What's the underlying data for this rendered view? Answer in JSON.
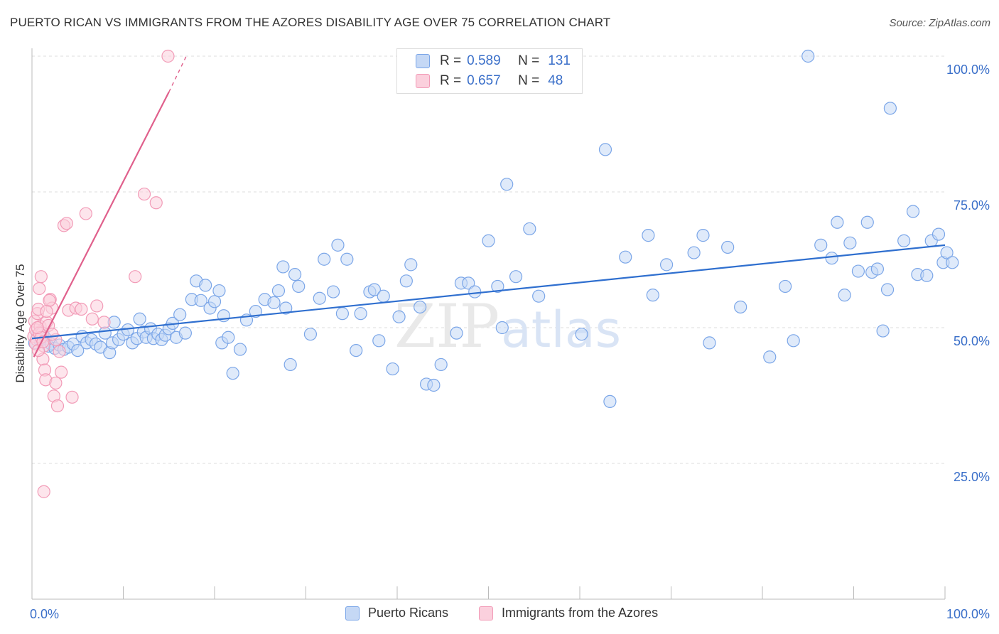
{
  "header": {
    "title": "PUERTO RICAN VS IMMIGRANTS FROM THE AZORES DISABILITY AGE OVER 75 CORRELATION CHART",
    "source": "Source: ZipAtlas.com"
  },
  "watermark": {
    "zip": "ZIP",
    "atlas": "atlas"
  },
  "legend": {
    "r_label": "R =",
    "n_label": "N =",
    "items": [
      {
        "r": "0.589",
        "n": "131",
        "color": "#7ba6e8"
      },
      {
        "r": "0.657",
        "n": "48",
        "color": "#f29bb7"
      }
    ]
  },
  "bottom_legend": [
    {
      "label": "Puerto Ricans",
      "color": "#7ba6e8"
    },
    {
      "label": "Immigrants from the Azores",
      "color": "#f29bb7"
    }
  ],
  "colors": {
    "blue_fill": "#c5d8f5",
    "blue_stroke": "#7ba6e8",
    "blue_line": "#2f6fcf",
    "pink_fill": "#fbd0dd",
    "pink_stroke": "#f29bb7",
    "pink_line": "#e0608c",
    "tick_label": "#3a6fc9",
    "grid": "#dddddd"
  },
  "chart_data": {
    "type": "scatter",
    "title": "PUERTO RICAN VS IMMIGRANTS FROM THE AZORES DISABILITY AGE OVER 75 CORRELATION CHART",
    "xlabel": "",
    "ylabel": "Disability Age Over 75",
    "xlim": [
      0,
      100
    ],
    "ylim": [
      0,
      100
    ],
    "x_tick_labels": [
      "0.0%",
      "100.0%"
    ],
    "y_ticks": [
      25,
      50,
      75,
      100
    ],
    "y_tick_labels": [
      "25.0%",
      "50.0%",
      "75.0%",
      "100.0%"
    ],
    "grid": true,
    "legend_position": "top-center",
    "series": [
      {
        "name": "Puerto Ricans",
        "r": 0.589,
        "n": 131,
        "trend": {
          "x": [
            0,
            100
          ],
          "y": [
            48.0,
            65.2
          ]
        },
        "points": [
          [
            0.3,
            47.2
          ],
          [
            0.6,
            48.6
          ],
          [
            0.9,
            47.6
          ],
          [
            1.2,
            49.0
          ],
          [
            1.5,
            48.0
          ],
          [
            1.8,
            46.6
          ],
          [
            2.1,
            47.0
          ],
          [
            2.5,
            46.2
          ],
          [
            3.0,
            46.8
          ],
          [
            3.5,
            46.0
          ],
          [
            4.0,
            46.4
          ],
          [
            4.5,
            47.0
          ],
          [
            5.0,
            45.8
          ],
          [
            5.5,
            48.4
          ],
          [
            6.0,
            47.2
          ],
          [
            6.5,
            47.8
          ],
          [
            7.0,
            47.0
          ],
          [
            7.5,
            46.4
          ],
          [
            8.0,
            49.0
          ],
          [
            8.5,
            45.4
          ],
          [
            8.8,
            47.2
          ],
          [
            9.0,
            51.0
          ],
          [
            9.5,
            47.8
          ],
          [
            10.0,
            48.8
          ],
          [
            10.5,
            49.6
          ],
          [
            11.0,
            47.2
          ],
          [
            11.5,
            48.0
          ],
          [
            11.8,
            51.6
          ],
          [
            12.2,
            49.2
          ],
          [
            12.5,
            48.2
          ],
          [
            13.0,
            49.8
          ],
          [
            13.3,
            48.0
          ],
          [
            13.8,
            48.8
          ],
          [
            14.2,
            47.8
          ],
          [
            14.6,
            48.6
          ],
          [
            15.0,
            49.8
          ],
          [
            15.4,
            50.8
          ],
          [
            15.8,
            48.2
          ],
          [
            16.2,
            52.4
          ],
          [
            16.8,
            49.0
          ],
          [
            17.5,
            55.2
          ],
          [
            18.0,
            58.6
          ],
          [
            18.5,
            55.0
          ],
          [
            19.0,
            57.8
          ],
          [
            19.5,
            53.6
          ],
          [
            20.0,
            54.8
          ],
          [
            20.5,
            56.8
          ],
          [
            20.8,
            47.2
          ],
          [
            21.0,
            52.2
          ],
          [
            21.5,
            48.2
          ],
          [
            22.0,
            41.6
          ],
          [
            22.8,
            46.0
          ],
          [
            23.5,
            51.4
          ],
          [
            24.5,
            53.0
          ],
          [
            25.5,
            55.2
          ],
          [
            26.5,
            54.6
          ],
          [
            27.0,
            56.8
          ],
          [
            27.5,
            61.2
          ],
          [
            27.8,
            53.6
          ],
          [
            28.3,
            43.2
          ],
          [
            28.8,
            59.8
          ],
          [
            29.2,
            57.6
          ],
          [
            30.5,
            48.8
          ],
          [
            31.5,
            55.4
          ],
          [
            32.0,
            62.6
          ],
          [
            33.0,
            56.6
          ],
          [
            33.5,
            65.2
          ],
          [
            34.0,
            52.6
          ],
          [
            34.5,
            62.6
          ],
          [
            35.5,
            45.8
          ],
          [
            36.0,
            52.6
          ],
          [
            37.0,
            56.6
          ],
          [
            37.5,
            57.0
          ],
          [
            38.0,
            47.6
          ],
          [
            38.5,
            55.8
          ],
          [
            39.5,
            42.4
          ],
          [
            40.2,
            52.0
          ],
          [
            41.0,
            58.6
          ],
          [
            41.5,
            61.6
          ],
          [
            42.5,
            53.8
          ],
          [
            43.2,
            39.6
          ],
          [
            44.0,
            39.4
          ],
          [
            44.8,
            43.2
          ],
          [
            46.5,
            49.0
          ],
          [
            47.0,
            58.2
          ],
          [
            47.8,
            58.2
          ],
          [
            48.5,
            56.6
          ],
          [
            50.0,
            66.0
          ],
          [
            51.0,
            57.6
          ],
          [
            51.5,
            50.0
          ],
          [
            52.0,
            76.4
          ],
          [
            53.0,
            59.4
          ],
          [
            54.5,
            68.2
          ],
          [
            55.5,
            55.8
          ],
          [
            60.2,
            48.8
          ],
          [
            62.8,
            82.8
          ],
          [
            63.3,
            36.4
          ],
          [
            65.0,
            63.0
          ],
          [
            67.5,
            67.0
          ],
          [
            68.0,
            56.0
          ],
          [
            69.5,
            61.6
          ],
          [
            72.5,
            63.8
          ],
          [
            73.5,
            67.0
          ],
          [
            74.2,
            47.2
          ],
          [
            76.2,
            64.8
          ],
          [
            77.6,
            53.8
          ],
          [
            80.8,
            44.6
          ],
          [
            82.5,
            57.6
          ],
          [
            83.4,
            47.6
          ],
          [
            85.0,
            100.0
          ],
          [
            86.4,
            65.2
          ],
          [
            87.6,
            62.8
          ],
          [
            88.2,
            69.4
          ],
          [
            89.0,
            56.0
          ],
          [
            89.6,
            65.6
          ],
          [
            90.5,
            60.4
          ],
          [
            91.5,
            69.4
          ],
          [
            92.0,
            60.2
          ],
          [
            92.6,
            60.8
          ],
          [
            93.2,
            49.4
          ],
          [
            93.7,
            57.0
          ],
          [
            94.0,
            90.4
          ],
          [
            95.5,
            66.0
          ],
          [
            96.5,
            71.4
          ],
          [
            97.0,
            59.8
          ],
          [
            98.0,
            59.6
          ],
          [
            98.5,
            66.0
          ],
          [
            99.3,
            67.2
          ],
          [
            99.8,
            62.0
          ],
          [
            100.2,
            63.8
          ],
          [
            100.8,
            62.0
          ]
        ]
      },
      {
        "name": "Immigrants from the Azores",
        "r": 0.657,
        "n": 48,
        "trend": {
          "x": [
            0.2,
            15.0
          ],
          "y": [
            44.6,
            93.4
          ]
        },
        "trend_extension": {
          "x": [
            15.0,
            16.9
          ],
          "y": [
            93.4,
            100.0
          ]
        },
        "points": [
          [
            0.2,
            48.4
          ],
          [
            0.3,
            51.2
          ],
          [
            0.4,
            49.6
          ],
          [
            0.5,
            47.8
          ],
          [
            0.6,
            52.6
          ],
          [
            0.7,
            53.4
          ],
          [
            0.8,
            57.2
          ],
          [
            0.9,
            50.2
          ],
          [
            1.0,
            59.4
          ],
          [
            1.1,
            49.0
          ],
          [
            1.2,
            44.2
          ],
          [
            1.3,
            46.6
          ],
          [
            1.4,
            42.2
          ],
          [
            1.5,
            40.4
          ],
          [
            1.6,
            51.0
          ],
          [
            1.8,
            50.4
          ],
          [
            2.0,
            55.2
          ],
          [
            2.2,
            53.6
          ],
          [
            2.4,
            37.4
          ],
          [
            2.6,
            39.8
          ],
          [
            2.8,
            35.6
          ],
          [
            3.0,
            45.6
          ],
          [
            3.2,
            41.8
          ],
          [
            3.5,
            68.8
          ],
          [
            3.8,
            69.2
          ],
          [
            4.0,
            53.2
          ],
          [
            4.4,
            37.2
          ],
          [
            4.8,
            53.6
          ],
          [
            5.4,
            53.4
          ],
          [
            5.9,
            71.0
          ],
          [
            6.6,
            51.6
          ],
          [
            7.1,
            54.0
          ],
          [
            7.9,
            51.0
          ],
          [
            11.3,
            59.4
          ],
          [
            12.3,
            74.6
          ],
          [
            13.6,
            73.0
          ],
          [
            14.9,
            100.0
          ],
          [
            1.3,
            19.8
          ],
          [
            0.8,
            49.0
          ],
          [
            1.9,
            55.0
          ],
          [
            0.4,
            47.0
          ],
          [
            0.7,
            45.8
          ],
          [
            2.6,
            47.8
          ],
          [
            1.0,
            48.2
          ],
          [
            1.2,
            47.4
          ],
          [
            2.2,
            48.8
          ],
          [
            1.6,
            53.0
          ],
          [
            0.6,
            50.0
          ]
        ]
      }
    ]
  }
}
